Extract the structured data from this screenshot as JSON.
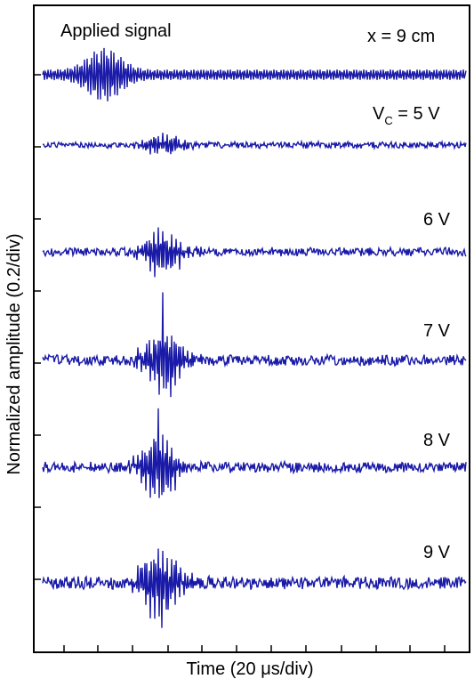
{
  "chart_data": {
    "type": "line",
    "xlabel": "Time (20 μs/div)",
    "ylabel": "Normalized amplitude (0.2/div)",
    "annotations": {
      "applied": "Applied signal",
      "position": "x = 9 cm",
      "vc_main": "V",
      "vc_sub": "C",
      "vc_rest": " = 5 V"
    },
    "x_unit_per_div": "20 μs",
    "y_unit_per_div": "0.2",
    "grid": false,
    "trace_color": "#1a1aa8",
    "series": [
      {
        "label": "Applied signal",
        "burst_center_div": 1.8,
        "burst_amp": 0.19,
        "noise_amp": 0.04,
        "osc_div": 0.07
      },
      {
        "label": "5 V",
        "burst_center_div": 3.5,
        "burst_amp": 0.08,
        "noise_amp": 0.03,
        "osc_div": 0.065
      },
      {
        "label": "6 V",
        "burst_center_div": 3.5,
        "burst_amp": 0.19,
        "noise_amp": 0.04,
        "osc_div": 0.065
      },
      {
        "label": "7 V",
        "burst_center_div": 3.5,
        "burst_amp": 0.28,
        "noise_amp": 0.05,
        "osc_div": 0.065
      },
      {
        "label": "8 V",
        "burst_center_div": 3.4,
        "burst_amp": 0.28,
        "noise_amp": 0.05,
        "osc_div": 0.065
      },
      {
        "label": "9 V",
        "burst_center_div": 3.4,
        "burst_amp": 0.3,
        "noise_amp": 0.06,
        "osc_div": 0.065
      }
    ]
  }
}
